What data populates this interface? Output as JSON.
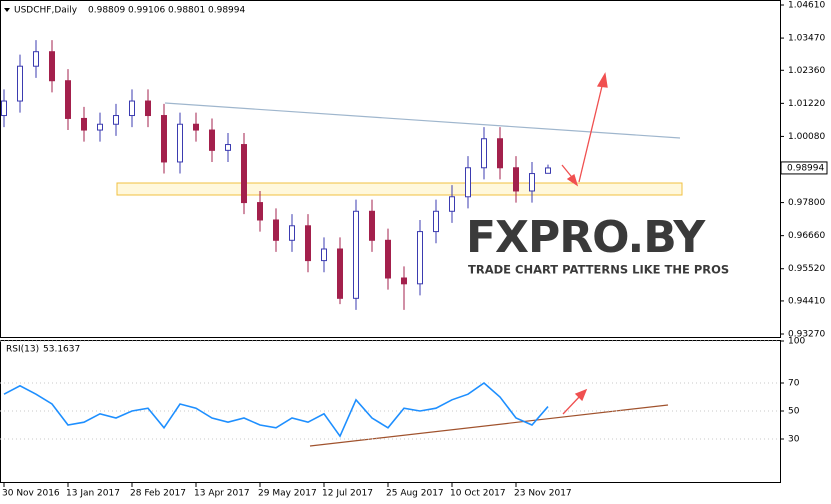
{
  "watermark": {
    "title": "FXPRO.BY",
    "subtitle": "TRADE CHART PATTERNS LIKE THE PROS"
  },
  "chart_data": [
    {
      "type": "candlestick",
      "title": "USDCHF,Daily",
      "categories": [
        "30 Nov 2016",
        null,
        null,
        null,
        "13 Jan 2017",
        null,
        null,
        null,
        "28 Feb 2017",
        null,
        null,
        null,
        "13 Apr 2017",
        null,
        null,
        null,
        "29 May 2017",
        null,
        null,
        null,
        "12 Jul 2017",
        null,
        null,
        null,
        "25 Aug 2017",
        null,
        null,
        null,
        "10 Oct 2017",
        null,
        null,
        null,
        "23 Nov 2017",
        null,
        null
      ],
      "open": [
        1.008,
        1.013,
        1.025,
        1.03,
        1.02,
        1.007,
        1.003,
        1.005,
        1.008,
        1.013,
        1.008,
        0.992,
        1.005,
        1.003,
        0.996,
        0.998,
        0.978,
        0.972,
        0.965,
        0.97,
        0.958,
        0.962,
        0.945,
        0.975,
        0.965,
        0.952,
        0.95,
        0.968,
        0.975,
        0.98,
        0.99,
        1.0,
        0.99,
        0.982,
        0.98809
      ],
      "high": [
        1.017,
        1.029,
        1.034,
        1.034,
        1.024,
        1.011,
        1.009,
        1.012,
        1.017,
        1.017,
        1.012,
        1.009,
        1.009,
        1.007,
        1.002,
        1.002,
        0.982,
        0.976,
        0.974,
        0.974,
        0.966,
        0.966,
        0.979,
        0.979,
        0.969,
        0.956,
        0.972,
        0.979,
        0.984,
        0.994,
        1.004,
        1.004,
        0.994,
        0.992,
        0.99106
      ],
      "low": [
        1.004,
        1.009,
        1.021,
        1.016,
        1.003,
        0.999,
        0.999,
        1.001,
        1.004,
        1.004,
        0.988,
        0.988,
        0.999,
        0.992,
        0.992,
        0.974,
        0.968,
        0.961,
        0.961,
        0.954,
        0.954,
        0.943,
        0.941,
        0.961,
        0.948,
        0.941,
        0.946,
        0.964,
        0.971,
        0.976,
        0.986,
        0.986,
        0.978,
        0.978,
        0.98801
      ],
      "close": [
        1.013,
        1.025,
        1.03,
        1.02,
        1.007,
        1.003,
        1.005,
        1.008,
        1.013,
        1.008,
        0.992,
        1.005,
        1.003,
        0.996,
        0.998,
        0.978,
        0.972,
        0.965,
        0.97,
        0.958,
        0.962,
        0.945,
        0.975,
        0.965,
        0.952,
        0.95,
        0.968,
        0.975,
        0.98,
        0.99,
        1.0,
        0.99,
        0.982,
        0.988,
        0.98994
      ],
      "up_color": "#3b3bb0",
      "down_color": "#a3204c",
      "ylim": [
        0.9327,
        1.0461
      ],
      "yticks": [
        {
          "value": 1.0461,
          "label": "1.04610"
        },
        {
          "value": 1.0347,
          "label": "1.03470"
        },
        {
          "value": 1.0236,
          "label": "1.02360"
        },
        {
          "value": 1.0122,
          "label": "1.01220"
        },
        {
          "value": 1.0008,
          "label": "1.00080"
        },
        {
          "value": 0.9894,
          "label": "0.98940"
        },
        {
          "value": 0.978,
          "label": "0.97800"
        },
        {
          "value": 0.9666,
          "label": "0.96660"
        },
        {
          "value": 0.9552,
          "label": "0.95520"
        },
        {
          "value": 0.9441,
          "label": "0.94410"
        },
        {
          "value": 0.9327,
          "label": "0.93270"
        }
      ]
    },
    {
      "type": "line",
      "series": [
        {
          "name": "RSI(13)",
          "color": "#1e8fff",
          "values": [
            62,
            68,
            62,
            55,
            40,
            42,
            48,
            45,
            50,
            52,
            38,
            55,
            52,
            45,
            42,
            45,
            40,
            38,
            45,
            42,
            48,
            32,
            58,
            45,
            38,
            52,
            50,
            52,
            58,
            62,
            70,
            60,
            45,
            40,
            53.1637
          ]
        }
      ],
      "ylim": [
        0,
        100
      ],
      "yticks": [
        30,
        50,
        70,
        100
      ]
    }
  ]
}
